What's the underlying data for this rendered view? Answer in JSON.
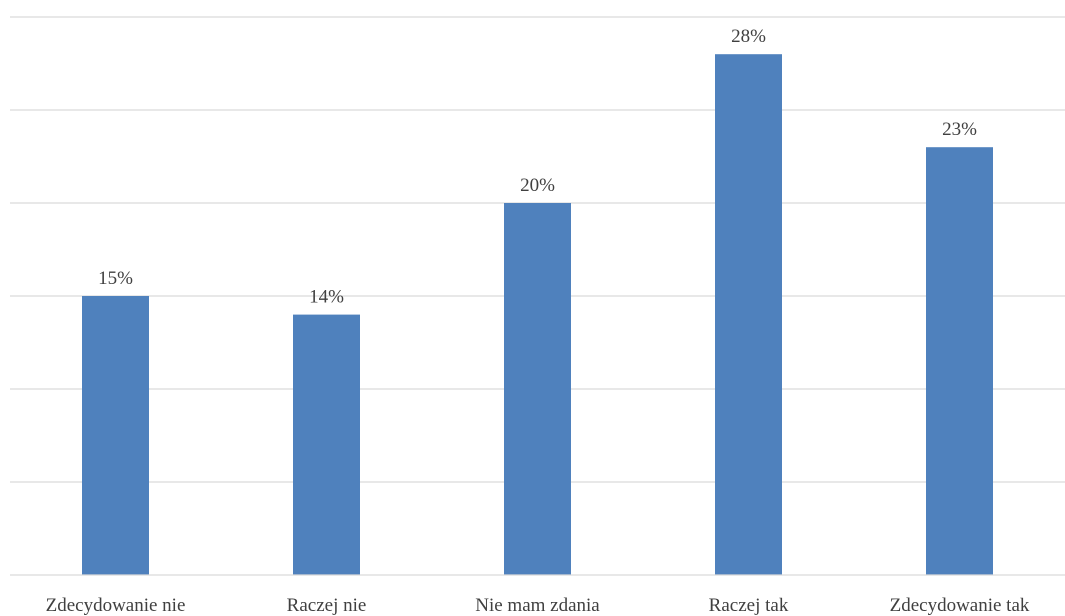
{
  "chart_data": {
    "type": "bar",
    "title": "",
    "xlabel": "",
    "ylabel": "",
    "categories": [
      "Zdecydowanie nie",
      "Raczej nie",
      "Nie mam zdania",
      "Raczej tak",
      "Zdecydowanie tak"
    ],
    "values": [
      15,
      14,
      20,
      28,
      23
    ],
    "value_labels": [
      "15%",
      "14%",
      "20%",
      "28%",
      "23%"
    ],
    "unit": "%",
    "ylim": [
      0,
      30
    ],
    "y_gridline_step": 5,
    "grid": true,
    "y_tick_labels_shown": false,
    "legend": "none",
    "bar_color": "#4f81bd",
    "grid_color": "#d9d9d9",
    "text_color": "#404040"
  }
}
